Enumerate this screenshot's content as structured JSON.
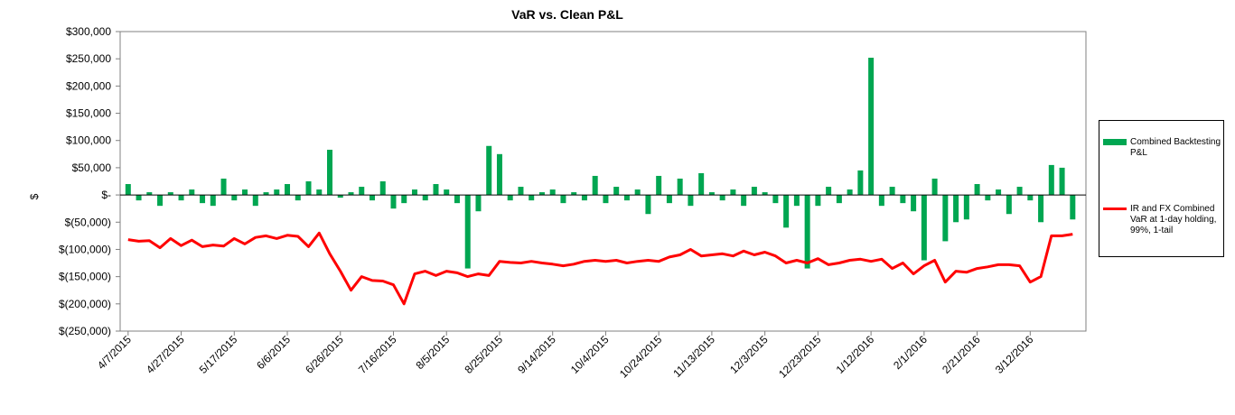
{
  "chart_data": {
    "type": "bar-line",
    "title": "VaR vs. Clean P&L",
    "y_label": "$",
    "x": [
      "4/7/2015",
      "4/11/2015",
      "4/15/2015",
      "4/19/2015",
      "4/23/2015",
      "4/27/2015",
      "5/1/2015",
      "5/5/2015",
      "5/9/2015",
      "5/13/2015",
      "5/17/2015",
      "5/21/2015",
      "5/25/2015",
      "5/29/2015",
      "6/2/2015",
      "6/6/2015",
      "6/10/2015",
      "6/14/2015",
      "6/18/2015",
      "6/22/2015",
      "6/26/2015",
      "6/30/2015",
      "7/4/2015",
      "7/8/2015",
      "7/12/2015",
      "7/16/2015",
      "7/20/2015",
      "7/24/2015",
      "7/28/2015",
      "8/1/2015",
      "8/5/2015",
      "8/9/2015",
      "8/13/2015",
      "8/17/2015",
      "8/21/2015",
      "8/25/2015",
      "8/29/2015",
      "9/2/2015",
      "9/6/2015",
      "9/10/2015",
      "9/14/2015",
      "9/18/2015",
      "9/22/2015",
      "9/26/2015",
      "9/30/2015",
      "10/4/2015",
      "10/8/2015",
      "10/12/2015",
      "10/16/2015",
      "10/20/2015",
      "10/24/2015",
      "10/28/2015",
      "11/1/2015",
      "11/5/2015",
      "11/9/2015",
      "11/13/2015",
      "11/17/2015",
      "11/21/2015",
      "11/25/2015",
      "11/29/2015",
      "12/3/2015",
      "12/7/2015",
      "12/11/2015",
      "12/15/2015",
      "12/19/2015",
      "12/23/2015",
      "12/27/2015",
      "12/31/2015",
      "1/4/2016",
      "1/8/2016",
      "1/12/2016",
      "1/16/2016",
      "1/20/2016",
      "1/24/2016",
      "1/28/2016",
      "2/1/2016",
      "2/5/2016",
      "2/9/2016",
      "2/13/2016",
      "2/17/2016",
      "2/21/2016",
      "2/25/2016",
      "2/29/2016",
      "3/4/2016",
      "3/8/2016",
      "3/12/2016",
      "3/16/2016",
      "3/20/2016",
      "3/24/2016",
      "3/28/2016"
    ],
    "series": [
      {
        "name": "Combined Backtesting P&L",
        "color": "#00a651",
        "kind": "bar",
        "values": [
          20000,
          -10000,
          5000,
          -20000,
          5000,
          -10000,
          10000,
          -15000,
          -20000,
          30000,
          -10000,
          10000,
          -20000,
          5000,
          10000,
          20000,
          -10000,
          25000,
          10000,
          83000,
          -5000,
          5000,
          15000,
          -10000,
          25000,
          -25000,
          -15000,
          10000,
          -10000,
          20000,
          10000,
          -15000,
          -135000,
          -30000,
          90000,
          75000,
          -10000,
          15000,
          -10000,
          5000,
          10000,
          -15000,
          5000,
          -10000,
          35000,
          -15000,
          15000,
          -10000,
          10000,
          -35000,
          35000,
          -15000,
          30000,
          -20000,
          40000,
          5000,
          -10000,
          10000,
          -20000,
          15000,
          5000,
          -15000,
          -60000,
          -20000,
          -135000,
          -20000,
          15000,
          -15000,
          10000,
          45000,
          252000,
          -20000,
          15000,
          -15000,
          -30000,
          -120000,
          30000,
          -85000,
          -50000,
          -45000,
          20000,
          -10000,
          10000,
          -35000,
          15000,
          -10000,
          -50000,
          55000,
          50000,
          -45000
        ]
      },
      {
        "name": "IR and FX Combined VaR at 1-day holding, 99%, 1-tail",
        "color": "#ff0000",
        "kind": "line",
        "values": [
          -82000,
          -85000,
          -84000,
          -97000,
          -80000,
          -93000,
          -83000,
          -95000,
          -92000,
          -94000,
          -80000,
          -90000,
          -78000,
          -75000,
          -80000,
          -74000,
          -76000,
          -95000,
          -70000,
          -108000,
          -140000,
          -175000,
          -150000,
          -157000,
          -158000,
          -165000,
          -200000,
          -145000,
          -140000,
          -148000,
          -140000,
          -143000,
          -150000,
          -145000,
          -148000,
          -122000,
          -124000,
          -125000,
          -122000,
          -125000,
          -127000,
          -130000,
          -127000,
          -122000,
          -120000,
          -122000,
          -120000,
          -125000,
          -122000,
          -120000,
          -122000,
          -114000,
          -110000,
          -100000,
          -112000,
          -110000,
          -108000,
          -112000,
          -103000,
          -110000,
          -105000,
          -112000,
          -125000,
          -120000,
          -125000,
          -117000,
          -128000,
          -125000,
          -120000,
          -118000,
          -122000,
          -118000,
          -135000,
          -125000,
          -145000,
          -130000,
          -120000,
          -160000,
          -140000,
          -142000,
          -135000,
          -132000,
          -128000,
          -128000,
          -130000,
          -160000,
          -150000,
          -75000,
          -75000,
          -72000
        ]
      }
    ],
    "xlim": [
      "4/4/2015",
      "4/2/2016"
    ],
    "xticks": [
      "4/7/2015",
      "4/27/2015",
      "5/17/2015",
      "6/6/2015",
      "6/26/2015",
      "7/16/2015",
      "8/5/2015",
      "8/25/2015",
      "9/14/2015",
      "10/4/2015",
      "10/24/2015",
      "11/13/2015",
      "12/3/2015",
      "12/23/2015",
      "1/12/2016",
      "2/1/2016",
      "2/21/2016",
      "3/12/2016"
    ],
    "ylim": [
      -250000,
      300000
    ],
    "yticks": [
      {
        "value": 300000,
        "label": "$300,000"
      },
      {
        "value": 250000,
        "label": "$250,000"
      },
      {
        "value": 200000,
        "label": "$200,000"
      },
      {
        "value": 150000,
        "label": "$150,000"
      },
      {
        "value": 100000,
        "label": "$100,000"
      },
      {
        "value": 50000,
        "label": "$50,000"
      },
      {
        "value": 0,
        "label": "$-"
      },
      {
        "value": -50000,
        "label": "$(50,000)"
      },
      {
        "value": -100000,
        "label": "$(100,000)"
      },
      {
        "value": -150000,
        "label": "$(150,000)"
      },
      {
        "value": -200000,
        "label": "$(200,000)"
      },
      {
        "value": -250000,
        "label": "$(250,000)"
      }
    ],
    "legend": "right"
  }
}
